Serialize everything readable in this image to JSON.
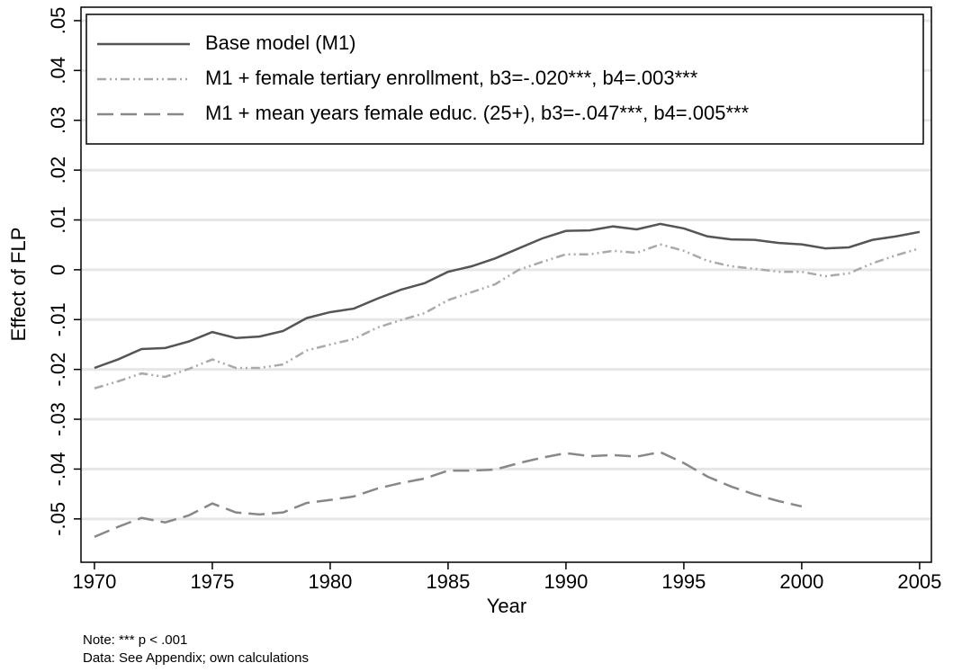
{
  "chart_data": {
    "type": "line",
    "x_label": "Year",
    "y_label": "Effect of FLP",
    "notes": [
      "Note: *** p < .001",
      "Data: See Appendix; own calculations"
    ],
    "x": [
      1970,
      1971,
      1972,
      1973,
      1974,
      1975,
      1976,
      1977,
      1978,
      1979,
      1980,
      1981,
      1982,
      1983,
      1984,
      1985,
      1986,
      1987,
      1988,
      1989,
      1990,
      1991,
      1992,
      1993,
      1994,
      1995,
      1996,
      1997,
      1998,
      1999,
      2000,
      2001,
      2002,
      2003,
      2004,
      2005
    ],
    "series": [
      {
        "name": "Base model (M1)",
        "color": "#555555",
        "line_style": "solid",
        "values": [
          -0.0197,
          -0.018,
          -0.0159,
          -0.0157,
          -0.0144,
          -0.0125,
          -0.0137,
          -0.0134,
          -0.0123,
          -0.0097,
          -0.0085,
          -0.0078,
          -0.0058,
          -0.004,
          -0.0027,
          -0.0004,
          0.0007,
          0.0023,
          0.0043,
          0.0063,
          0.0078,
          0.0079,
          0.0087,
          0.0081,
          0.0092,
          0.0083,
          0.0067,
          0.0061,
          0.006,
          0.0054,
          0.0051,
          0.0043,
          0.0045,
          0.006,
          0.0067,
          0.0076
        ]
      },
      {
        "name": "M1 + female tertiary enrollment, b3=-.020***, b4=.003***",
        "color": "#aaaaaa",
        "line_style": "dash-dot-dot",
        "values": [
          -0.0238,
          -0.0224,
          -0.0208,
          -0.0215,
          -0.0199,
          -0.018,
          -0.0197,
          -0.0197,
          -0.019,
          -0.0162,
          -0.015,
          -0.0139,
          -0.0116,
          -0.0101,
          -0.0087,
          -0.0061,
          -0.0045,
          -0.0029,
          0,
          0.0016,
          0.0031,
          0.0031,
          0.0038,
          0.0034,
          0.0051,
          0.0038,
          0.0018,
          0.0007,
          0.0002,
          -0.0004,
          -0.0004,
          -0.0013,
          -0.0007,
          0.0013,
          0.0029,
          0.0043
        ]
      },
      {
        "name": "M1 + mean years female educ. (25+), b3=-.047***, b4=.005***",
        "color": "#888888",
        "line_style": "long-dash",
        "values": [
          -0.0536,
          -0.0516,
          -0.0498,
          -0.0507,
          -0.0493,
          -0.0469,
          -0.0487,
          -0.0491,
          -0.0487,
          -0.0468,
          -0.0462,
          -0.0455,
          -0.0439,
          -0.0428,
          -0.0419,
          -0.0403,
          -0.0403,
          -0.0401,
          -0.0388,
          -0.0377,
          -0.0368,
          -0.0374,
          -0.0372,
          -0.0375,
          -0.0366,
          -0.0388,
          -0.0415,
          -0.0435,
          -0.0451,
          -0.0464,
          -0.0475,
          null,
          null,
          null,
          null,
          null
        ]
      }
    ],
    "xlim": [
      1969.43,
      2005.5
    ],
    "xticks": [
      1970,
      1975,
      1980,
      1985,
      1990,
      1995,
      2000,
      2005
    ],
    "ylim": [
      -0.0587,
      0.0527
    ],
    "yticks": [
      {
        "value": -0.05,
        "label": "-.05"
      },
      {
        "value": -0.04,
        "label": "-.04"
      },
      {
        "value": -0.03,
        "label": "-.03"
      },
      {
        "value": -0.02,
        "label": "-.02"
      },
      {
        "value": -0.01,
        "label": "-.01"
      },
      0,
      {
        "value": 0.01,
        "label": ".01"
      },
      {
        "value": 0.02,
        "label": ".02"
      },
      {
        "value": 0.03,
        "label": ".03"
      },
      {
        "value": 0.04,
        "label": ".04"
      },
      {
        "value": 0.05,
        "label": ".05"
      }
    ],
    "grid": true,
    "legend": "top-left"
  }
}
